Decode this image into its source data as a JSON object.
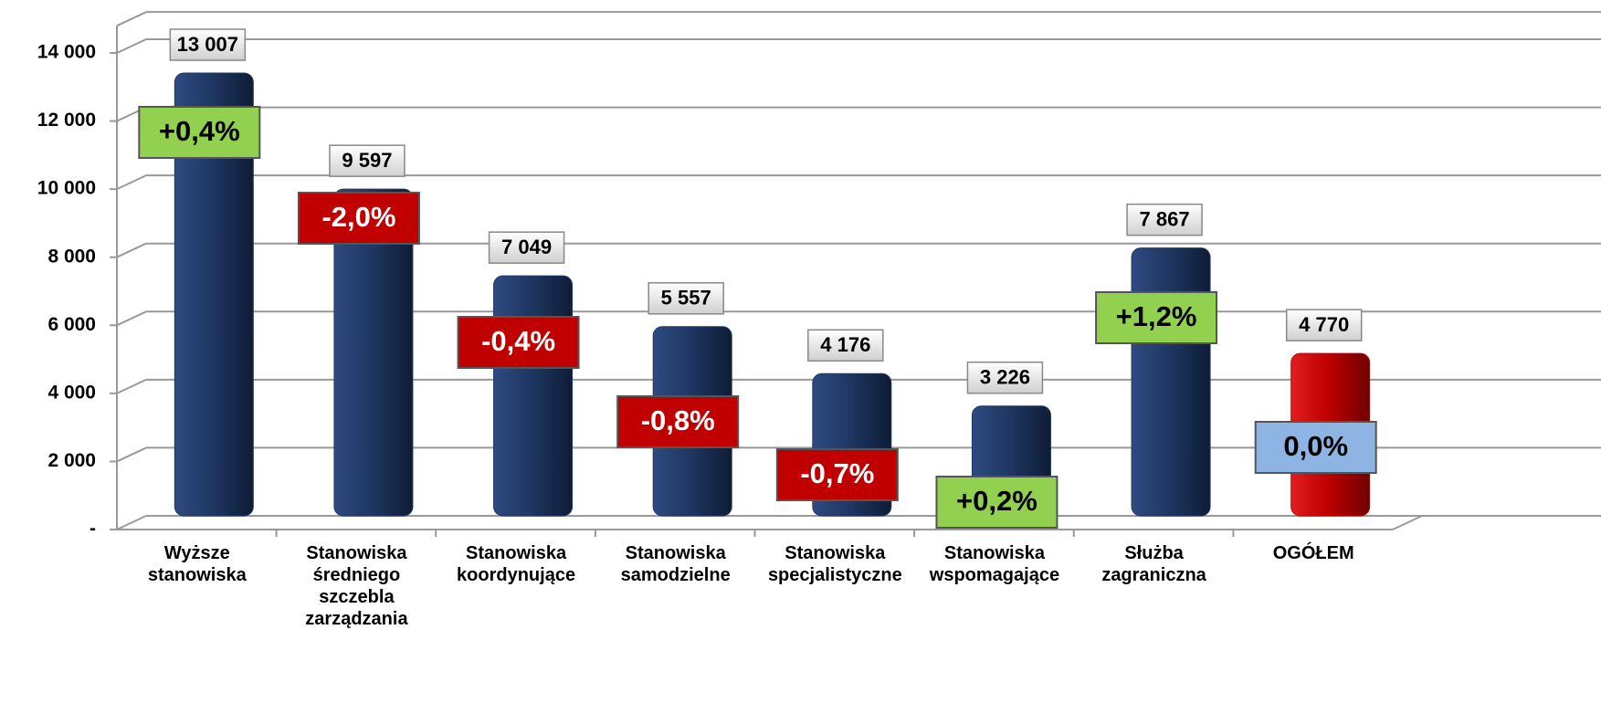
{
  "chart_data": {
    "type": "bar",
    "categories": [
      "Wyższe stanowiska",
      "Stanowiska średniego szczebla zarządzania",
      "Stanowiska koordynujące",
      "Stanowiska samodzielne",
      "Stanowiska specjalistyczne",
      "Stanowiska wspomagające",
      "Służba zagraniczna",
      "OGÓŁEM"
    ],
    "values": [
      13007,
      9597,
      7049,
      5557,
      4176,
      3226,
      7867,
      4770
    ],
    "value_labels": [
      "13 007",
      "9 597",
      "7 049",
      "5 557",
      "4 176",
      "3 226",
      "7 867",
      "4 770"
    ],
    "colors": [
      "#1f3864",
      "#1f3864",
      "#1f3864",
      "#1f3864",
      "#1f3864",
      "#1f3864",
      "#1f3864",
      "#c00000"
    ],
    "changes": {
      "values": [
        0.4,
        -2.0,
        -0.4,
        -0.8,
        -0.7,
        0.2,
        1.2,
        0.0
      ],
      "value_labels": [
        "+0,4%",
        "-2,0%",
        "-0,4%",
        "-0,8%",
        "-0,7%",
        "+0,2%",
        "+1,2%",
        "0,0%"
      ],
      "colors": [
        "#92d050",
        "#c00000",
        "#c00000",
        "#c00000",
        "#c00000",
        "#92d050",
        "#92d050",
        "#8db4e2"
      ]
    },
    "ylim": [
      0,
      14800
    ],
    "yticks": [
      {
        "value": 0,
        "label": "-"
      },
      {
        "value": 2000,
        "label": "2 000"
      },
      {
        "value": 4000,
        "label": "4 000"
      },
      {
        "value": 6000,
        "label": "6 000"
      },
      {
        "value": 8000,
        "label": "8 000"
      },
      {
        "value": 10000,
        "label": "10 000"
      },
      {
        "value": 12000,
        "label": "12 000"
      },
      {
        "value": 14000,
        "label": "14 000"
      }
    ],
    "grid": true
  }
}
